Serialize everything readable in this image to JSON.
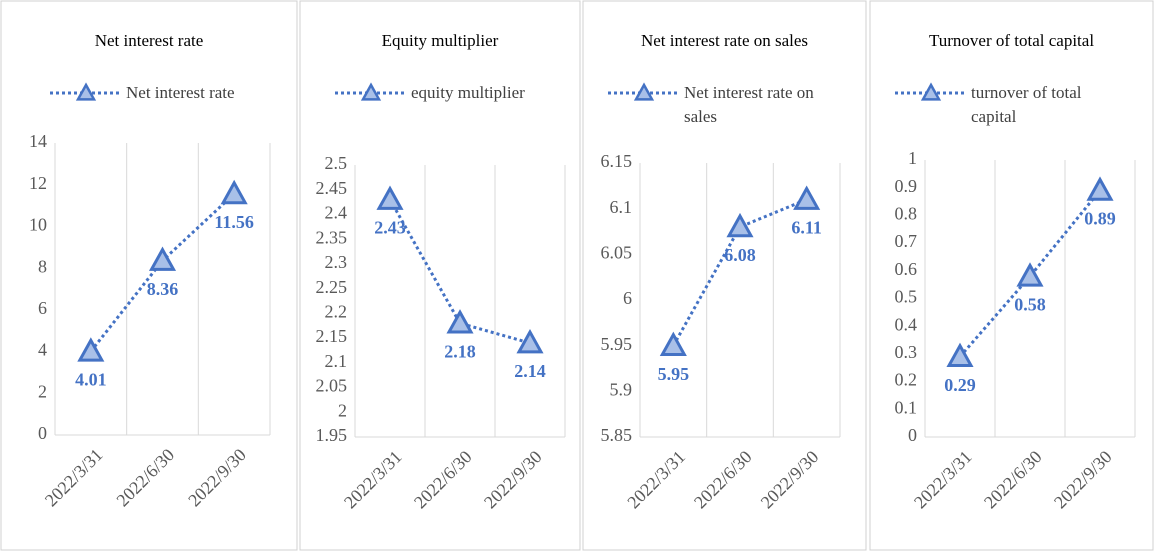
{
  "chart_data": [
    {
      "type": "line",
      "title": "Net interest rate",
      "categories": [
        "2022/3/31",
        "2022/6/30",
        "2022/9/30"
      ],
      "series": [
        {
          "name": "Net interest rate",
          "color": "#4472c4",
          "values": [
            4.01,
            8.36,
            11.56
          ]
        }
      ],
      "ylim": [
        0,
        14
      ],
      "yticks": [
        0,
        2,
        4,
        6,
        8,
        10,
        12,
        14
      ]
    },
    {
      "type": "line",
      "title": "Equity multiplier",
      "categories": [
        "2022/3/31",
        "2022/6/30",
        "2022/9/30"
      ],
      "series": [
        {
          "name": "equity multiplier",
          "color": "#4472c4",
          "values": [
            2.43,
            2.18,
            2.14
          ]
        }
      ],
      "ylim": [
        1.95,
        2.5
      ],
      "yticks": [
        1.95,
        2,
        2.05,
        2.1,
        2.15,
        2.2,
        2.25,
        2.3,
        2.35,
        2.4,
        2.45,
        2.5
      ]
    },
    {
      "type": "line",
      "title": "Net interest rate on sales",
      "categories": [
        "2022/3/31",
        "2022/6/30",
        "2022/9/30"
      ],
      "series": [
        {
          "name": "Net interest rate on sales",
          "color": "#4472c4",
          "values": [
            5.95,
            6.08,
            6.11
          ]
        }
      ],
      "ylim": [
        5.85,
        6.15
      ],
      "yticks": [
        5.85,
        5.9,
        5.95,
        6,
        6.05,
        6.1,
        6.15
      ]
    },
    {
      "type": "line",
      "title": "Turnover of total capital",
      "categories": [
        "2022/3/31",
        "2022/6/30",
        "2022/9/30"
      ],
      "series": [
        {
          "name": "turnover of total capital",
          "color": "#4472c4",
          "values": [
            0.29,
            0.58,
            0.89
          ]
        }
      ],
      "ylim": [
        0,
        1
      ],
      "yticks": [
        0,
        0.1,
        0.2,
        0.3,
        0.4,
        0.5,
        0.6,
        0.7,
        0.8,
        0.9,
        1
      ]
    }
  ]
}
